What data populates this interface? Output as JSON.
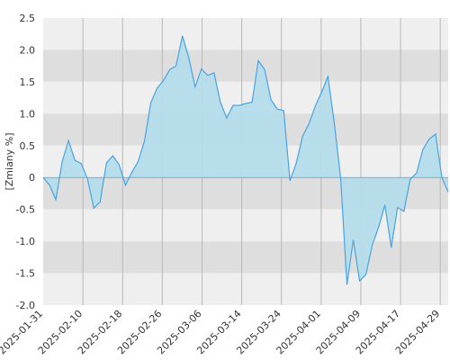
{
  "chart_data": {
    "type": "area",
    "title": "",
    "xlabel": "",
    "ylabel": "[Zmiany %]",
    "ylim": [
      -2.0,
      2.5
    ],
    "yticks": [
      "2.5",
      "2.0",
      "1.5",
      "1.0",
      "0.5",
      "0",
      "-0.5",
      "-1.0",
      "-1.5",
      "-2.0"
    ],
    "xticks": [
      "2025-01-31",
      "2025-02-10",
      "2025-02-18",
      "2025-02-26",
      "2025-03-06",
      "2025-03-14",
      "2025-03-24",
      "2025-04-01",
      "2025-04-09",
      "2025-04-17",
      "2025-04-29"
    ],
    "grid": true,
    "colors": {
      "fill": "#b5dcea",
      "line": "#4aa3df",
      "band_light": "#efefef",
      "band_dark": "#dedede",
      "vgrid": "#b8b8b8"
    },
    "series": [
      {
        "values": [
          0.0,
          -0.12,
          -0.35,
          0.25,
          0.58,
          0.27,
          0.22,
          -0.02,
          -0.48,
          -0.38,
          0.23,
          0.34,
          0.2,
          -0.12,
          0.08,
          0.25,
          0.57,
          1.17,
          1.4,
          1.52,
          1.69,
          1.75,
          2.22,
          1.88,
          1.42,
          1.7,
          1.6,
          1.64,
          1.18,
          0.93,
          1.13,
          1.13,
          1.16,
          1.18,
          1.83,
          1.69,
          1.22,
          1.07,
          1.05,
          -0.05,
          0.23,
          0.65,
          0.84,
          1.12,
          1.34,
          1.58,
          0.85,
          0.0,
          -1.68,
          -0.98,
          -1.62,
          -1.52,
          -1.06,
          -0.78,
          -0.43,
          -1.1,
          -0.47,
          -0.53,
          -0.03,
          0.07,
          0.44,
          0.6,
          0.68,
          0.0,
          -0.23
        ]
      }
    ]
  }
}
